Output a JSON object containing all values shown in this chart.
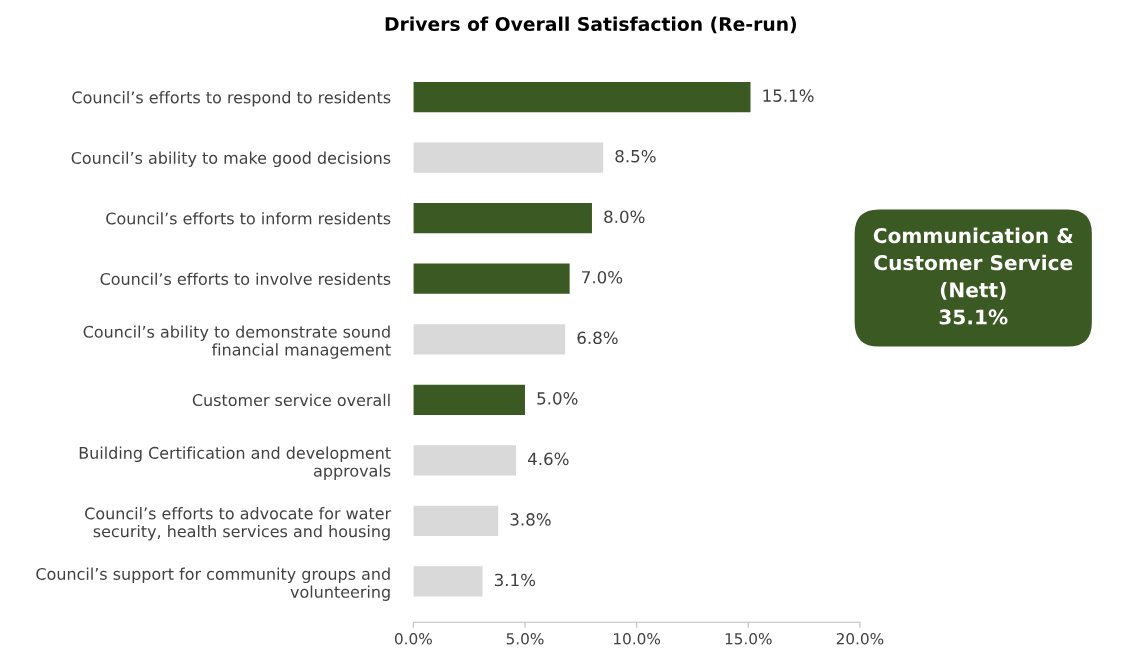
{
  "chart_data": {
    "type": "bar",
    "orientation": "horizontal",
    "title": "Drivers of Overall Satisfaction (Re-run)",
    "categories": [
      "Council’s efforts to respond to residents",
      "Council’s ability to make good decisions",
      "Council’s efforts to inform residents",
      "Council’s efforts to involve residents",
      "Council’s ability to demonstrate sound\nfinancial management",
      "Customer service overall",
      "Building Certification and development\napprovals",
      "Council’s efforts to advocate for water\nsecurity, health services and housing",
      "Council’s support for community groups and\nvolunteering"
    ],
    "values": [
      15.1,
      8.5,
      8.0,
      7.0,
      6.8,
      5.0,
      4.6,
      3.8,
      3.1
    ],
    "colors": [
      "#3b5a23",
      "#d9d9d9",
      "#3b5a23",
      "#3b5a23",
      "#d9d9d9",
      "#3b5a23",
      "#d9d9d9",
      "#d9d9d9",
      "#d9d9d9"
    ],
    "value_labels": [
      "15.1%",
      "8.5%",
      "8.0%",
      "7.0%",
      "6.8%",
      "5.0%",
      "4.6%",
      "3.8%",
      "3.1%"
    ],
    "xlim": [
      0,
      20
    ],
    "xticks": [
      {
        "value": 0,
        "label": "0.0%"
      },
      {
        "value": 5,
        "label": "5.0%"
      },
      {
        "value": 10,
        "label": "10.0%"
      },
      {
        "value": 15,
        "label": "15.0%"
      },
      {
        "value": 20,
        "label": "20.0%"
      }
    ],
    "grid": false,
    "legend": false,
    "annotations": [
      "Communication &\nCustomer Service\n(Nett)\n35.1%"
    ]
  }
}
